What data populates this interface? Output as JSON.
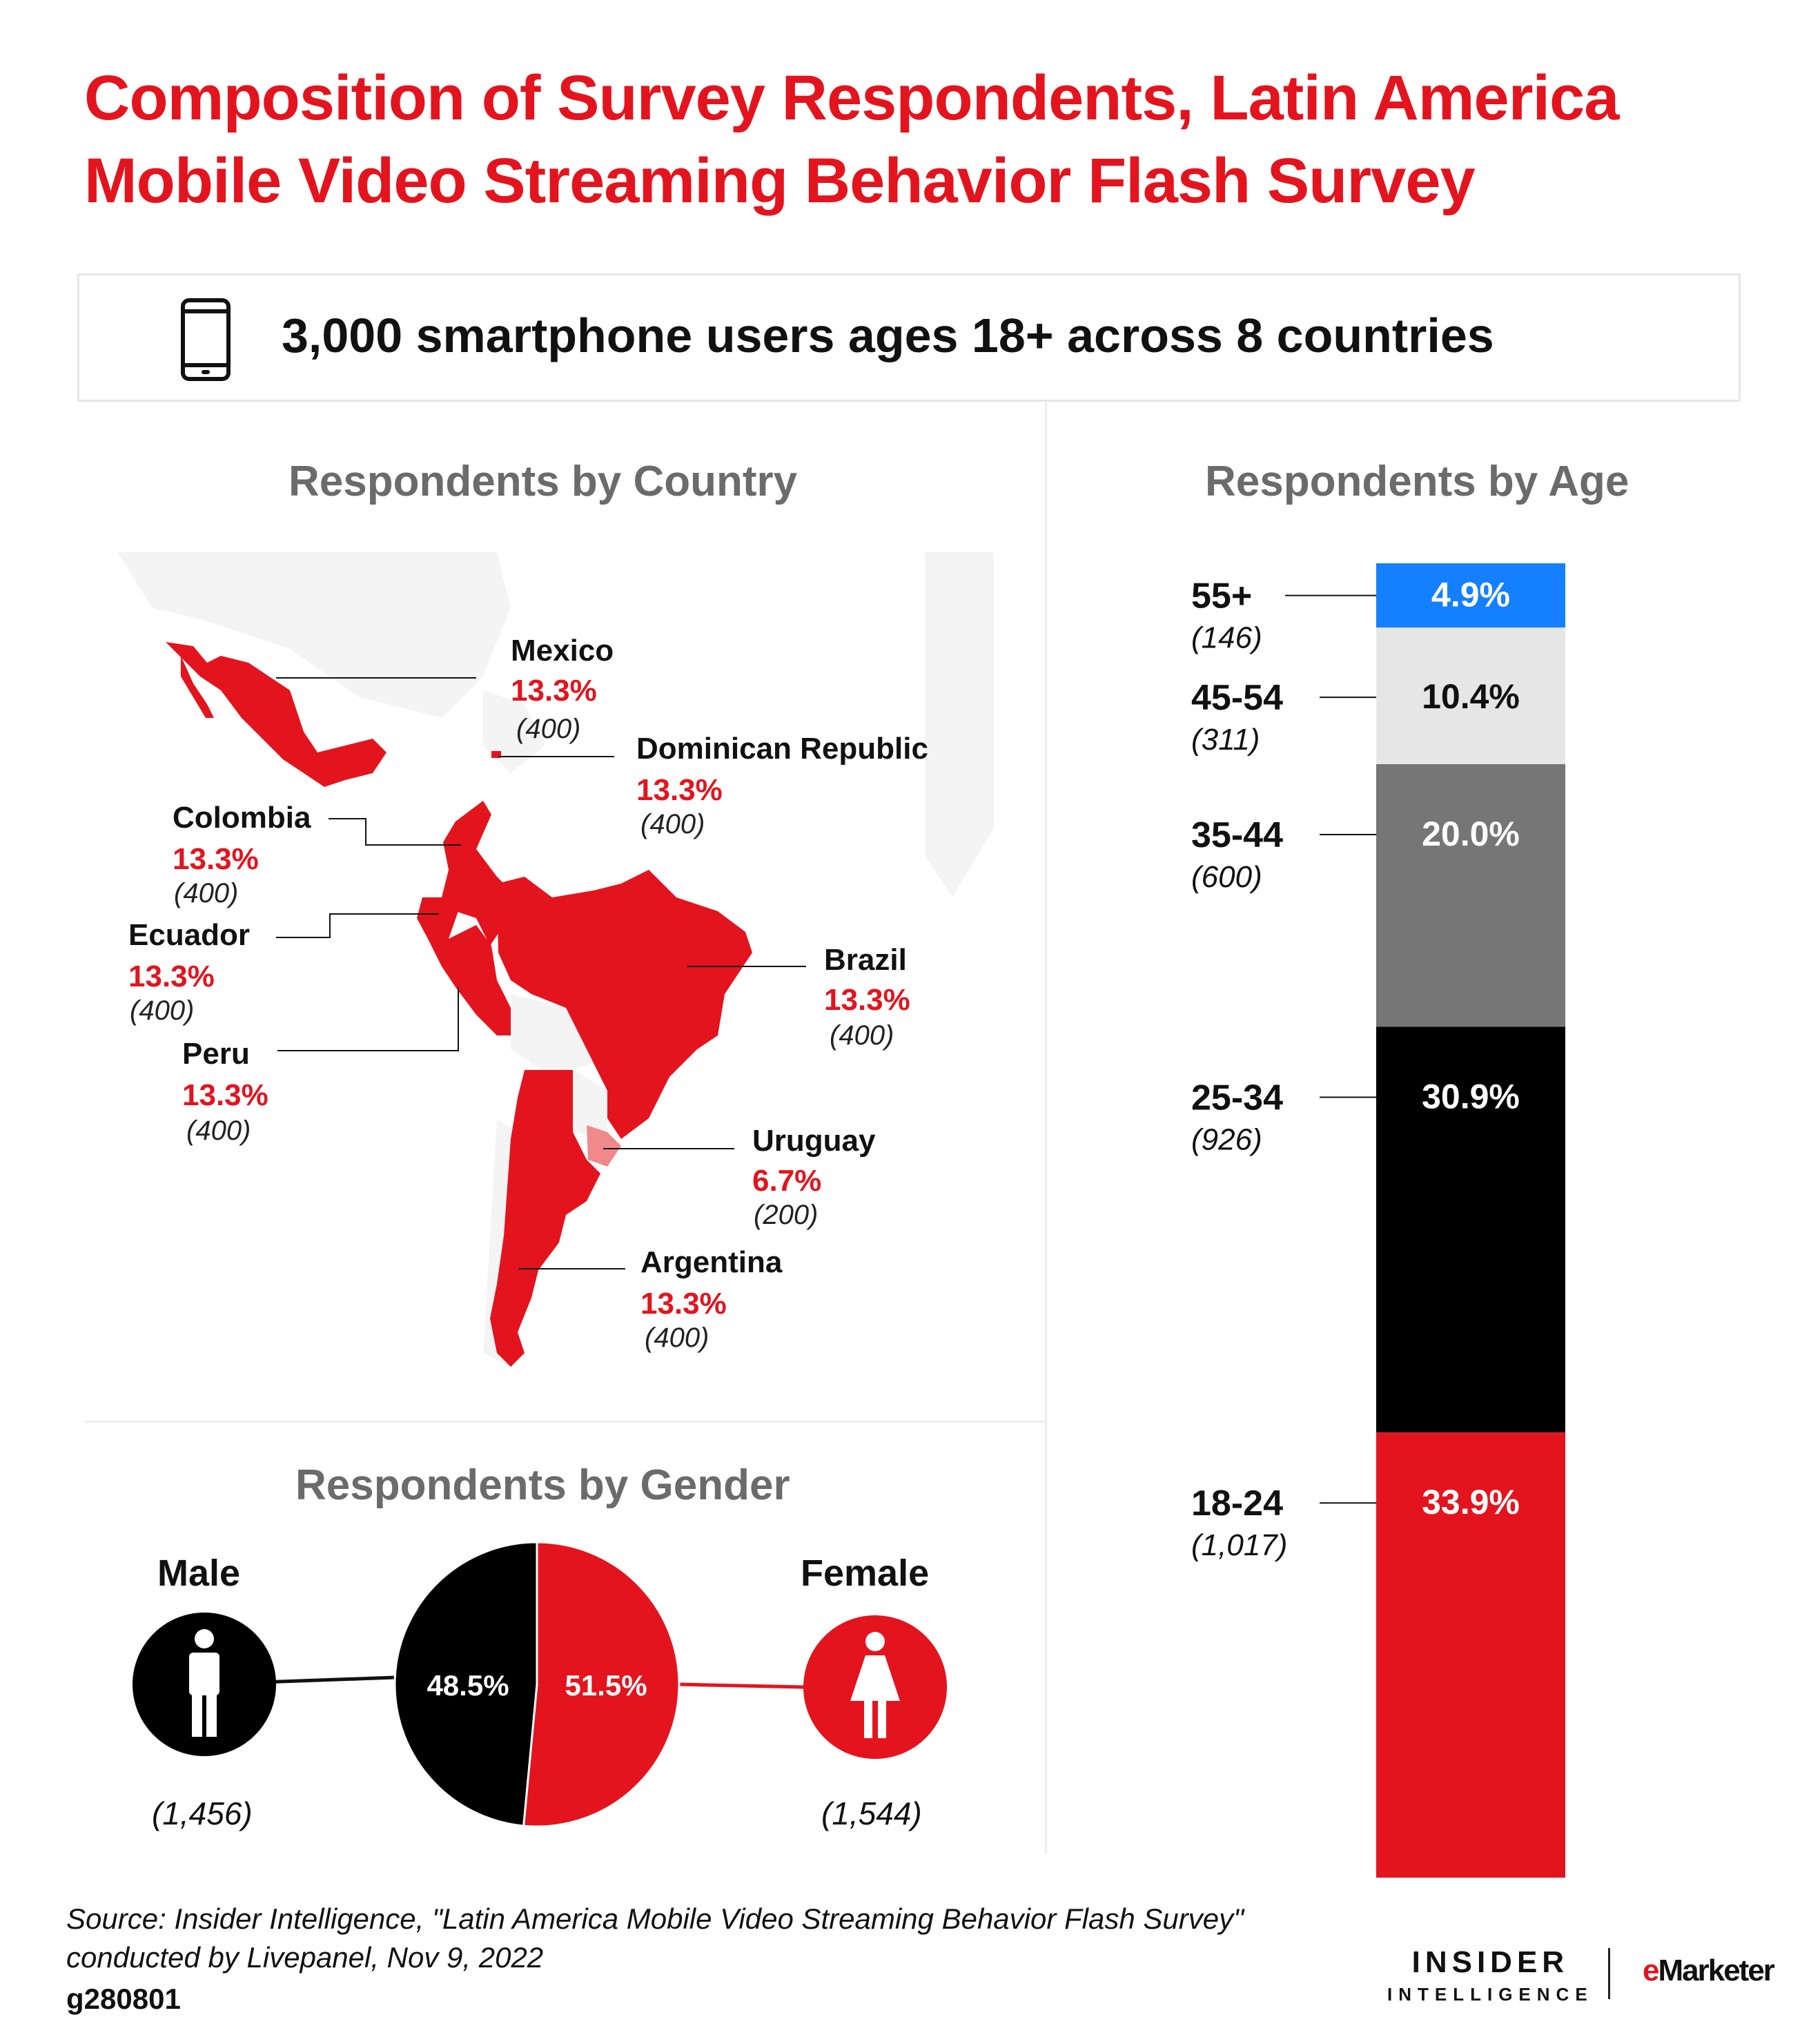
{
  "title": "Composition of Survey Respondents, Latin America Mobile Video Streaming Behavior Flash Survey",
  "banner": {
    "text": "3,000 smartphone users ages 18+ across 8 countries",
    "icon": "smartphone-icon"
  },
  "colors": {
    "red": "#e3141e",
    "lightred": "#f08a8a",
    "black": "#000000",
    "gray": "#767676",
    "lightgray": "#e6e6e6",
    "blue": "#1580ff",
    "land": "#f4f4f4"
  },
  "chart_data": [
    {
      "type": "map",
      "title": "Respondents by Country",
      "countries": [
        {
          "name": "Mexico",
          "pct": "13.3%",
          "count": "(400)"
        },
        {
          "name": "Dominican Republic",
          "pct": "13.3%",
          "count": "(400)"
        },
        {
          "name": "Colombia",
          "pct": "13.3%",
          "count": "(400)"
        },
        {
          "name": "Ecuador",
          "pct": "13.3%",
          "count": "(400)"
        },
        {
          "name": "Peru",
          "pct": "13.3%",
          "count": "(400)"
        },
        {
          "name": "Brazil",
          "pct": "13.3%",
          "count": "(400)"
        },
        {
          "name": "Uruguay",
          "pct": "6.7%",
          "count": "(200)"
        },
        {
          "name": "Argentina",
          "pct": "13.3%",
          "count": "(400)"
        }
      ]
    },
    {
      "type": "pie",
      "title": "Respondents by Gender",
      "slices": [
        {
          "name": "Male",
          "value": 48.5,
          "label": "48.5%",
          "count": "(1,456)"
        },
        {
          "name": "Female",
          "value": 51.5,
          "label": "51.5%",
          "count": "(1,544)"
        }
      ]
    },
    {
      "type": "bar",
      "stacked": true,
      "title": "Respondents by Age",
      "segments": [
        {
          "name": "55+",
          "value": 4.9,
          "label": "4.9%",
          "count": "(146)"
        },
        {
          "name": "45-54",
          "value": 10.4,
          "label": "10.4%",
          "count": "(311)"
        },
        {
          "name": "35-44",
          "value": 20.0,
          "label": "20.0%",
          "count": "(600)"
        },
        {
          "name": "25-34",
          "value": 30.9,
          "label": "30.9%",
          "count": "(926)"
        },
        {
          "name": "18-24",
          "value": 33.9,
          "label": "33.9%",
          "count": "(1,017)"
        }
      ]
    }
  ],
  "source": {
    "line1": "Source: Insider Intelligence, \"Latin America Mobile Video Streaming Behavior Flash Survey\"",
    "line2": "conducted by Livepanel, Nov 9, 2022",
    "code": "g280801"
  },
  "logos": {
    "insider_1": "INSIDER",
    "insider_2": "INTELLIGENCE",
    "em_e": "e",
    "em_rest": "Marketer"
  }
}
